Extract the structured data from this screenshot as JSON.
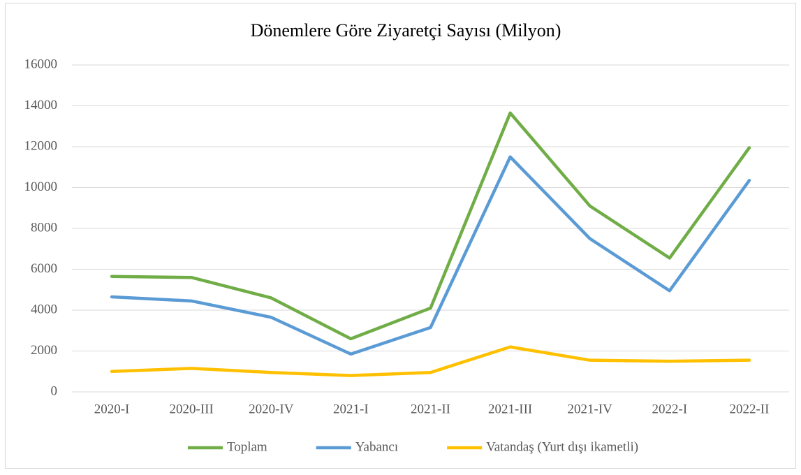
{
  "chart_data": {
    "type": "line",
    "title": "Dönemlere Göre Ziyaretçi Sayısı (Milyon)",
    "categories": [
      "2020-I",
      "2020-III",
      "2020-IV",
      "2021-I",
      "2021-II",
      "2021-III",
      "2021-IV",
      "2022-I",
      "2022-II"
    ],
    "series": [
      {
        "name": "Toplam",
        "color": "#70ad47",
        "values": [
          5650,
          5600,
          4600,
          2600,
          4100,
          13650,
          9100,
          6550,
          11950
        ]
      },
      {
        "name": "Yabancı",
        "color": "#5b9bd5",
        "values": [
          4650,
          4450,
          3650,
          1850,
          3150,
          11500,
          7500,
          4950,
          10350
        ]
      },
      {
        "name": "Vatandaş (Yurt dışı ikametli)",
        "color": "#ffc000",
        "values": [
          1000,
          1150,
          950,
          800,
          950,
          2200,
          1550,
          1500,
          1550
        ]
      }
    ],
    "ylim": [
      0,
      16000
    ],
    "yticks": [
      0,
      2000,
      4000,
      6000,
      8000,
      10000,
      12000,
      14000,
      16000
    ],
    "grid": true,
    "legend": "bottom"
  }
}
